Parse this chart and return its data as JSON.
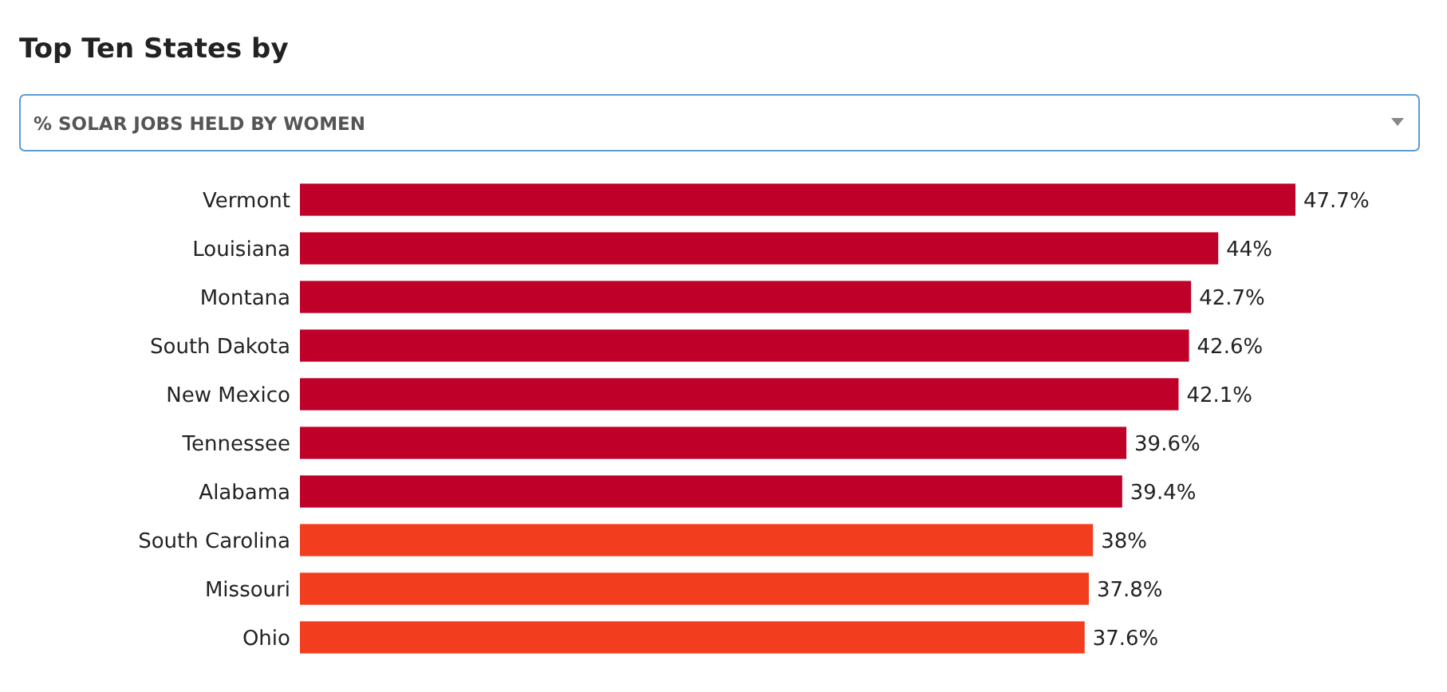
{
  "chart_data": {
    "type": "bar",
    "orientation": "horizontal",
    "title": "Top Ten States by",
    "subtitle": "% SOLAR JOBS HELD BY WOMEN",
    "categories": [
      "Vermont",
      "Louisiana",
      "Montana",
      "South Dakota",
      "New Mexico",
      "Tennessee",
      "Alabama",
      "South Carolina",
      "Missouri",
      "Ohio"
    ],
    "values": [
      47.7,
      44,
      42.7,
      42.6,
      42.1,
      39.6,
      39.4,
      38,
      37.8,
      37.6
    ],
    "colors": [
      "#bf0029",
      "#bf0029",
      "#bf0029",
      "#bf0029",
      "#bf0029",
      "#bf0029",
      "#bf0029",
      "#f23d1f",
      "#f23d1f",
      "#f23d1f"
    ],
    "value_labels": [
      "47.7%",
      "44%",
      "42.7%",
      "42.6%",
      "42.1%",
      "39.6%",
      "39.4%",
      "38%",
      "37.8%",
      "37.6%"
    ]
  }
}
